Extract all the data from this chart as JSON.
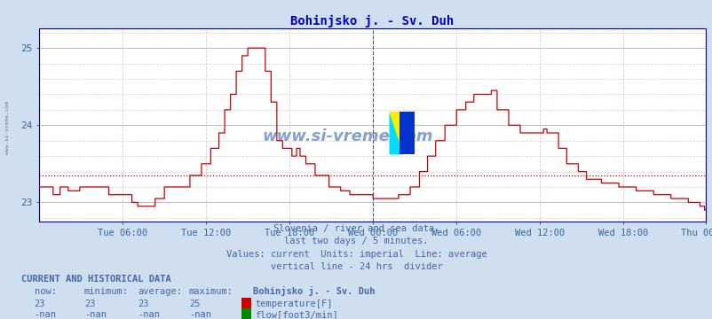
{
  "title": "Bohinjsko j. - Sv. Duh",
  "title_color": "#0000cc",
  "bg_color": "#d0dff0",
  "plot_bg_color": "#ffffff",
  "grid_color_major": "#c8c8d8",
  "grid_color_minor": "#e0e0ee",
  "line_color": "#cc0000",
  "avg_line_color": "#cc0000",
  "divider_line_color": "#9900aa",
  "right_line_color": "#cc00cc",
  "border_color": "#0000aa",
  "text_color": "#4466aa",
  "ylim": [
    22.75,
    25.25
  ],
  "yticks": [
    23,
    24,
    25
  ],
  "num_points": 576,
  "avg_value": 23.35,
  "tick_label_color": "#336699",
  "subtitle_lines": [
    "Slovenia / river and sea data.",
    "last two days / 5 minutes.",
    "Values: current  Units: imperial  Line: average",
    "vertical line - 24 hrs  divider"
  ],
  "current_and_hist_label": "CURRENT AND HISTORICAL DATA",
  "col_headers": [
    "now:",
    "minimum:",
    "average:",
    "maximum:",
    "Bohinjsko j. - Sv. Duh"
  ],
  "temp_row": [
    "23",
    "23",
    "23",
    "25",
    "temperature[F]"
  ],
  "flow_row": [
    "-nan",
    "-nan",
    "-nan",
    "-nan",
    "flow[foot3/min]"
  ],
  "temp_color": "#cc0000",
  "flow_color": "#008800"
}
